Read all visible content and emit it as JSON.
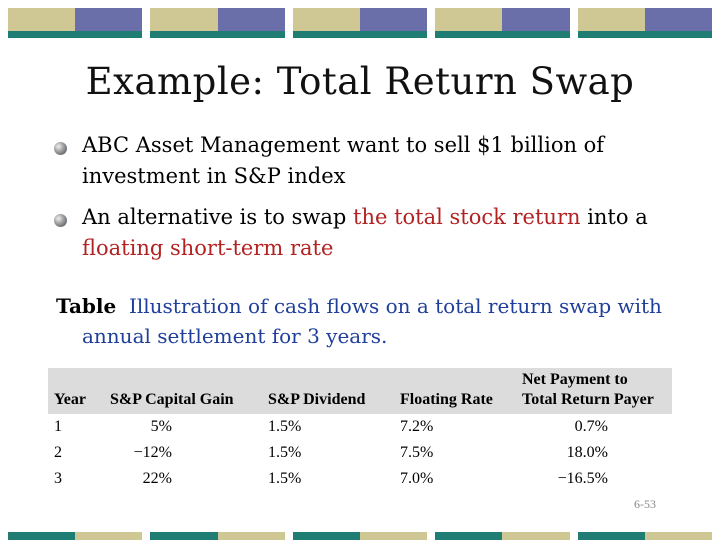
{
  "colors": {
    "tan": "#cfc895",
    "navy": "#6a6faa",
    "teal": "#1f7d73",
    "slate": "#8a93b8",
    "table_header": "#dcdcdc",
    "highlight_red": "#b22222",
    "caption_blue": "#1f3f9a"
  },
  "title": "Example: Total Return Swap",
  "bullets": [
    {
      "parts": [
        {
          "text": "ABC Asset Management want to sell $1 billion of investment in S&P index",
          "style": "normal"
        }
      ]
    },
    {
      "parts": [
        {
          "text": "An alternative is to swap ",
          "style": "normal"
        },
        {
          "text": "the total stock return",
          "style": "red"
        },
        {
          "text": " into a ",
          "style": "normal"
        },
        {
          "text": "floating short-term rate",
          "style": "red"
        }
      ]
    }
  ],
  "caption": {
    "label": "Table",
    "text": "Illustration of cash flows on a total return swap with annual settlement for 3 years."
  },
  "table": {
    "headers": [
      "Year",
      "S&P Capital Gain",
      "S&P Dividend",
      "Floating Rate",
      "Net Payment to Total Return Payer"
    ],
    "rows": [
      [
        "1",
        "5%",
        "1.5%",
        "7.2%",
        "0.7%"
      ],
      [
        "2",
        "−12%",
        "1.5%",
        "7.5%",
        "18.0%"
      ],
      [
        "3",
        "22%",
        "1.5%",
        "7.0%",
        "−16.5%"
      ]
    ]
  },
  "page_number": "6-53"
}
